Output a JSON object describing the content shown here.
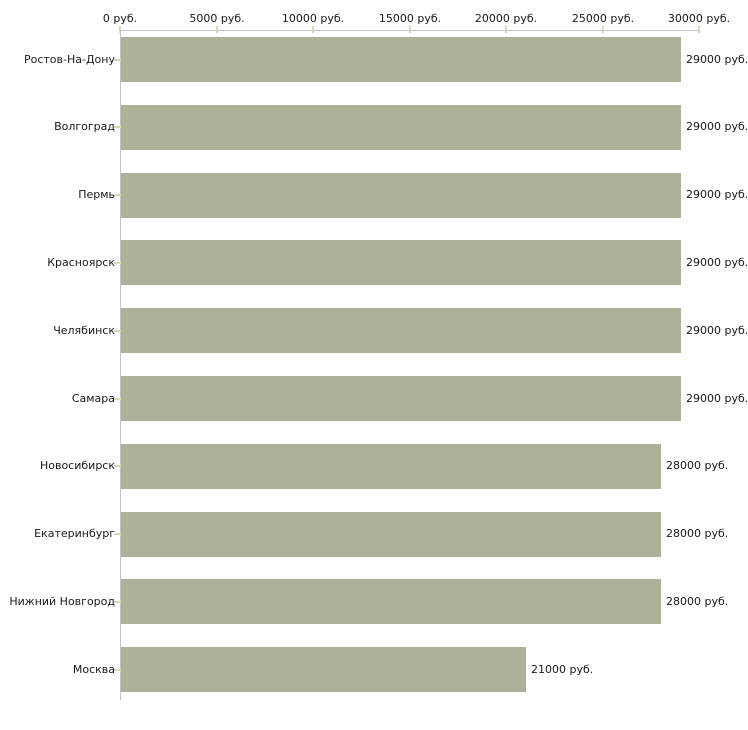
{
  "chart_data": {
    "type": "bar",
    "orientation": "horizontal",
    "title": "",
    "xlabel": "",
    "ylabel": "",
    "unit": "руб.",
    "categories": [
      "Ростов-На-Дону",
      "Волгоград",
      "Пермь",
      "Красноярск",
      "Челябинск",
      "Самара",
      "Новосибирск",
      "Екатеринбург",
      "Нижний Новгород",
      "Москва"
    ],
    "values": [
      29000,
      29000,
      29000,
      29000,
      29000,
      29000,
      28000,
      28000,
      28000,
      21000
    ],
    "bar_value_labels": [
      "29000 руб.",
      "29000 руб.",
      "29000 руб.",
      "29000 руб.",
      "29000 руб.",
      "29000 руб.",
      "28000 руб.",
      "28000 руб.",
      "28000 руб.",
      "21000 руб."
    ],
    "x_tick_values": [
      0,
      5000,
      10000,
      15000,
      20000,
      25000,
      30000
    ],
    "x_tick_labels": [
      "0 руб.",
      "5000 руб.",
      "10000 руб.",
      "15000 руб.",
      "20000 руб.",
      "25000 руб.",
      "30000 руб."
    ],
    "xlim": [
      0,
      30000
    ],
    "grid": false,
    "legend": false,
    "colors": {
      "bar": "#acb298",
      "axis_line": "#c2c2c2",
      "tick_mark": "#d9d6bc",
      "text": "#1a1a1a",
      "background": "#ffffff"
    }
  }
}
